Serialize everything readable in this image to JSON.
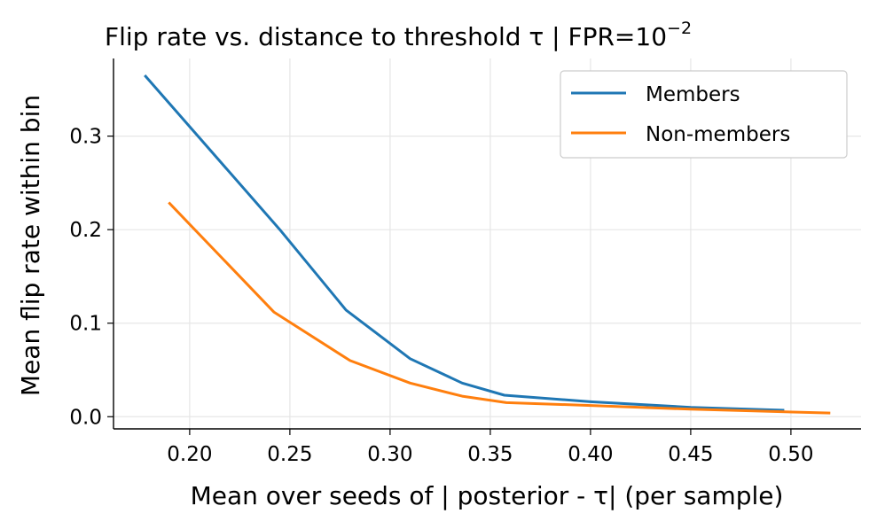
{
  "chart_data": {
    "type": "line",
    "title": "Flip rate vs. distance to threshold τ  |  FPR=10",
    "title_superscript": "−2",
    "xlabel": "Mean over seeds of | posterior - τ| (per sample)",
    "ylabel": "Mean flip rate within bin",
    "xlim": [
      0.162,
      0.535
    ],
    "ylim": [
      -0.013,
      0.383
    ],
    "xticks": [
      0.2,
      0.25,
      0.3,
      0.35,
      0.4,
      0.45,
      0.5
    ],
    "xtick_labels": [
      "0.20",
      "0.25",
      "0.30",
      "0.35",
      "0.40",
      "0.45",
      "0.50"
    ],
    "yticks": [
      0.0,
      0.1,
      0.2,
      0.3
    ],
    "ytick_labels": [
      "0.0",
      "0.1",
      "0.2",
      "0.3"
    ],
    "grid": true,
    "legend_position": "top-right",
    "series": [
      {
        "name": "Members",
        "color": "#1f77b4",
        "x": [
          0.178,
          0.245,
          0.278,
          0.31,
          0.336,
          0.357,
          0.4,
          0.45,
          0.496
        ],
        "y": [
          0.364,
          0.2,
          0.114,
          0.062,
          0.036,
          0.023,
          0.016,
          0.01,
          0.007
        ]
      },
      {
        "name": "Non-members",
        "color": "#ff7f0e",
        "x": [
          0.19,
          0.242,
          0.28,
          0.31,
          0.336,
          0.358,
          0.4,
          0.45,
          0.519
        ],
        "y": [
          0.228,
          0.112,
          0.06,
          0.036,
          0.022,
          0.015,
          0.012,
          0.008,
          0.004
        ]
      }
    ]
  }
}
